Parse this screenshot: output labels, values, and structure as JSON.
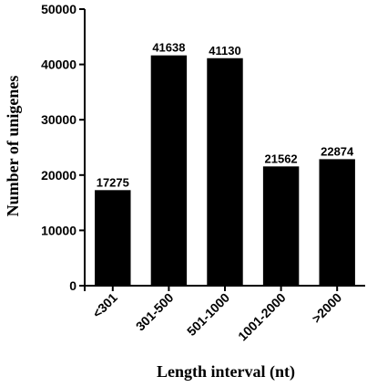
{
  "chart_data": {
    "type": "bar",
    "title": "",
    "xlabel": "Length interval (nt)",
    "ylabel": "Number of unigenes",
    "categories": [
      "<301",
      "301-500",
      "501-1000",
      "1001-2000",
      ">2000"
    ],
    "values": [
      17275,
      41638,
      41130,
      21562,
      22874
    ],
    "data_labels": [
      "17275",
      "41638",
      "41130",
      "21562",
      "22874"
    ],
    "ylim": [
      0,
      50000
    ],
    "yticks": [
      0,
      10000,
      20000,
      30000,
      40000,
      50000
    ],
    "ytick_labels": [
      "0",
      "10000",
      "20000",
      "30000",
      "40000",
      "50000"
    ],
    "grid": false,
    "legend": "none",
    "bar_color": "#000000"
  }
}
